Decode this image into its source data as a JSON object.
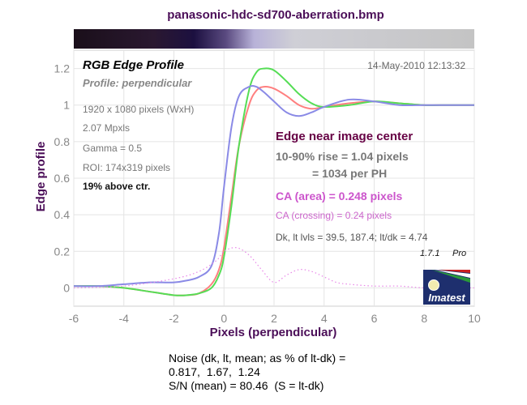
{
  "chart_data": {
    "type": "line",
    "title": "panasonic-hdc-sd700-aberration.bmp",
    "xlabel": "Pixels (perpendicular)",
    "ylabel": "Edge profile",
    "xlim": [
      -6,
      10
    ],
    "ylim": [
      -0.1,
      1.3
    ],
    "x_ticks": [
      -6,
      -4,
      -2,
      0,
      2,
      4,
      6,
      8,
      10
    ],
    "y_ticks": [
      0,
      0.2,
      0.4,
      0.6,
      0.8,
      1,
      1.2
    ],
    "y_tick_labels": [
      "0",
      "0.2",
      "0.4",
      "0.6",
      "0.8",
      "1",
      "1.2"
    ],
    "grid": true,
    "series": [
      {
        "color": "#ff7f7f",
        "x": [
          -6,
          -5,
          -4,
          -3,
          -2.5,
          -2,
          -1.5,
          -1,
          -0.5,
          -0.2,
          0,
          0.3,
          0.6,
          1,
          1.3,
          1.6,
          2,
          2.5,
          3,
          3.5,
          4,
          5,
          6,
          7,
          8,
          9,
          10
        ],
        "y": [
          0.01,
          0.01,
          0.0,
          -0.02,
          -0.03,
          -0.04,
          -0.04,
          -0.03,
          0.02,
          0.1,
          0.22,
          0.5,
          0.78,
          1.0,
          1.08,
          1.1,
          1.09,
          1.05,
          1.0,
          0.98,
          0.99,
          1.01,
          1.02,
          1.01,
          1.0,
          1.0,
          1.0
        ]
      },
      {
        "color": "#55dd55",
        "x": [
          -6,
          -5,
          -4,
          -3,
          -2.5,
          -2,
          -1.5,
          -1,
          -0.5,
          -0.2,
          0,
          0.3,
          0.6,
          1,
          1.3,
          1.6,
          2,
          2.5,
          3,
          3.5,
          4,
          5,
          6,
          7,
          8,
          9,
          10
        ],
        "y": [
          0.01,
          0.01,
          0.0,
          -0.02,
          -0.03,
          -0.04,
          -0.04,
          -0.03,
          0.0,
          0.07,
          0.17,
          0.45,
          0.78,
          1.08,
          1.18,
          1.2,
          1.19,
          1.13,
          1.06,
          1.01,
          0.99,
          1.0,
          1.02,
          1.01,
          1.0,
          1.0,
          1.0
        ]
      },
      {
        "color": "#8a8ae6",
        "x": [
          -6,
          -5,
          -4,
          -3,
          -2.5,
          -2,
          -1.5,
          -1,
          -0.5,
          -0.2,
          0,
          0.3,
          0.6,
          1,
          1.3,
          1.6,
          2,
          2.5,
          3,
          3.5,
          4,
          5,
          6,
          7,
          8,
          9,
          10
        ],
        "y": [
          0.01,
          0.01,
          0.02,
          0.03,
          0.03,
          0.03,
          0.04,
          0.06,
          0.12,
          0.3,
          0.55,
          0.88,
          1.05,
          1.1,
          1.1,
          1.07,
          1.02,
          0.96,
          0.94,
          0.96,
          0.99,
          1.03,
          1.02,
          1.0,
          1.0,
          1.0,
          1.0
        ]
      },
      {
        "color": "#e887e8",
        "dashed": true,
        "x": [
          -6,
          -4,
          -2,
          -1,
          -0.3,
          0,
          0.5,
          1,
          1.5,
          2,
          2.5,
          3,
          3.5,
          4,
          4.5,
          5,
          6,
          7,
          8,
          9,
          10
        ],
        "y": [
          0.0,
          0.01,
          0.05,
          0.09,
          0.15,
          0.2,
          0.22,
          0.18,
          0.1,
          0.03,
          0.07,
          0.1,
          0.09,
          0.06,
          0.03,
          0.02,
          0.01,
          0.01,
          0.0,
          0.0,
          0.0
        ]
      }
    ],
    "gradient_strip": true
  },
  "panel": {
    "heading": "RGB Edge Profile",
    "profile": "Profile: perpendicular",
    "timestamp": "14-May-2010 12:13:32",
    "info_lines": [
      "1920 x 1080 pixels (WxH)",
      "2.07 Mpxls",
      "Gamma = 0.5",
      "ROI: 174x319 pixels"
    ],
    "location": "19% above ctr.",
    "edge_title": "Edge near image center",
    "rise_line1": "10-90% rise = 1.04 pixels",
    "rise_line2": "= 1034 per PH",
    "ca_area": "CA (area) = 0.248 pixels",
    "ca_crossing": "CA (crossing) = 0.24 pixels",
    "levels": "Dk, lt lvls = 39.5, 187.4;  lt/dk = 4.74",
    "version": "1.7.1",
    "version_suffix": "Pro",
    "logo_text": "Imatest"
  },
  "noise": {
    "line1": "Noise (dk, lt, mean; as % of lt-dk) =",
    "line2": "0.817,  1.67,  1.24",
    "line3": "S/N (mean) = 80.46  (S = lt-dk)"
  },
  "colors": {
    "title": "#4b0e58",
    "axis_text": "#888888",
    "edge_title": "#660044",
    "ca": "#cc55cc",
    "logo_bg": "#1e2f6e",
    "logo_stripe_red": "#cc2222",
    "logo_stripe_green": "#2a9a3a"
  }
}
